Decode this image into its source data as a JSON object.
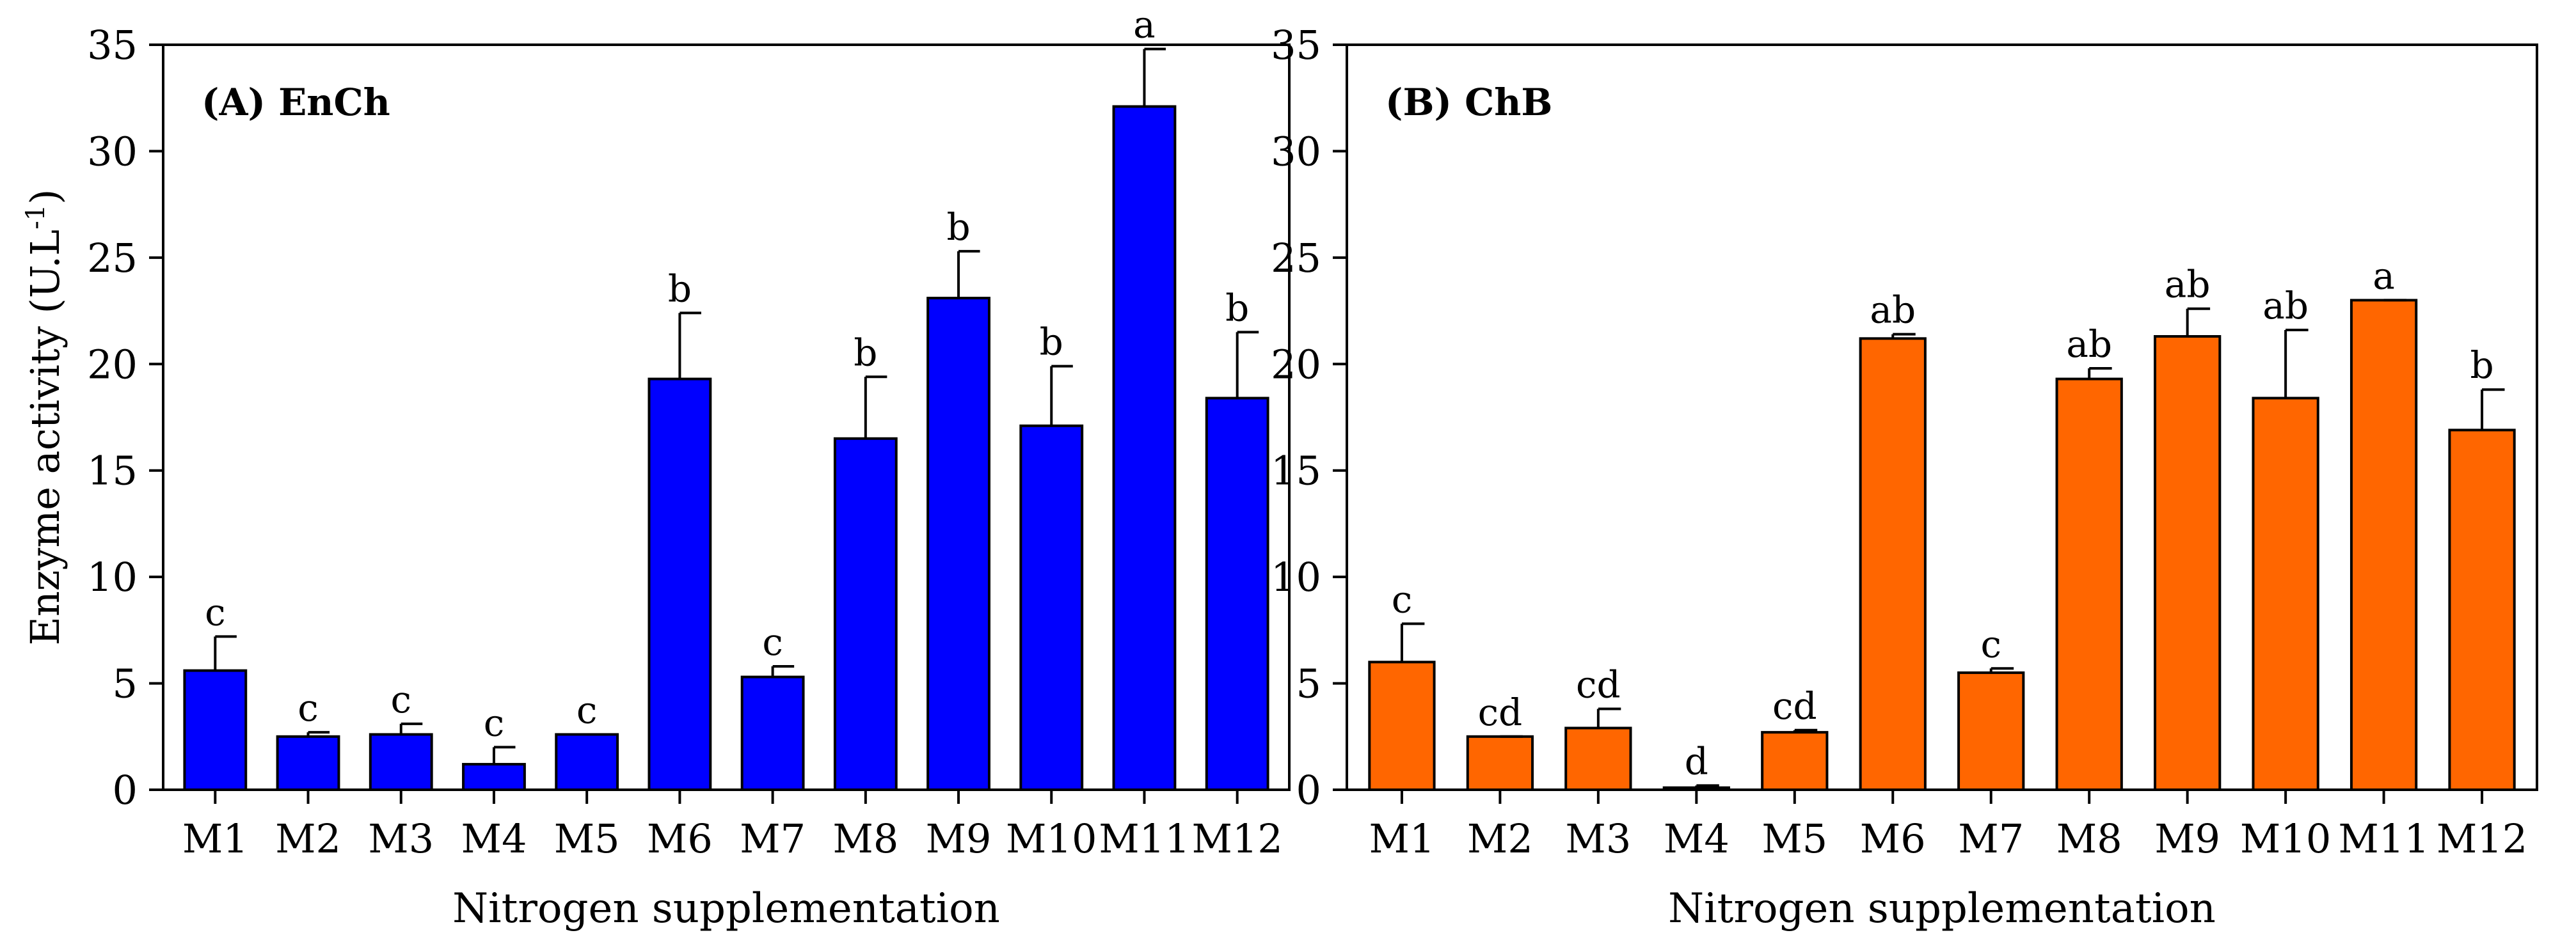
{
  "chart_data": [
    {
      "type": "bar",
      "panel_label": "(A) EnCh",
      "categories": [
        "M1",
        "M2",
        "M3",
        "M4",
        "M5",
        "M6",
        "M7",
        "M8",
        "M9",
        "M10",
        "M11",
        "M12"
      ],
      "values": [
        5.6,
        2.5,
        2.6,
        1.2,
        2.6,
        19.3,
        5.3,
        16.5,
        23.1,
        17.1,
        32.1,
        18.4
      ],
      "errors": [
        1.6,
        0.2,
        0.5,
        0.8,
        0.0,
        3.1,
        0.5,
        2.9,
        2.2,
        2.8,
        2.7,
        3.1
      ],
      "letters": [
        "c",
        "c",
        "c",
        "c",
        "c",
        "b",
        "c",
        "b",
        "b",
        "b",
        "a",
        "b"
      ],
      "color": "#0000ff",
      "xlabel": "Nitrogen supplementation",
      "ylabel": "Enzyme activity (U.L",
      "ylabel_sup": "-1",
      "ylabel_end": ")",
      "ylim": [
        0,
        35
      ],
      "yticks": [
        "0",
        "5",
        "10",
        "15",
        "20",
        "25",
        "30",
        "35"
      ]
    },
    {
      "type": "bar",
      "panel_label": "(B) ChB",
      "categories": [
        "M1",
        "M2",
        "M3",
        "M4",
        "M5",
        "M6",
        "M7",
        "M8",
        "M9",
        "M10",
        "M11",
        "M12"
      ],
      "values": [
        6.0,
        2.5,
        2.9,
        0.1,
        2.7,
        21.2,
        5.5,
        19.3,
        21.3,
        18.4,
        23.0,
        16.9
      ],
      "errors": [
        1.8,
        0.0,
        0.9,
        0.1,
        0.1,
        0.2,
        0.2,
        0.5,
        1.3,
        3.2,
        0.0,
        1.9
      ],
      "letters": [
        "c",
        "cd",
        "cd",
        "d",
        "cd",
        "ab",
        "c",
        "ab",
        "ab",
        "ab",
        "a",
        "b"
      ],
      "color": "#ff6600",
      "xlabel": "Nitrogen supplementation",
      "ylim": [
        0,
        35
      ],
      "yticks": [
        "0",
        "5",
        "10",
        "15",
        "20",
        "25",
        "30",
        "35"
      ]
    }
  ]
}
